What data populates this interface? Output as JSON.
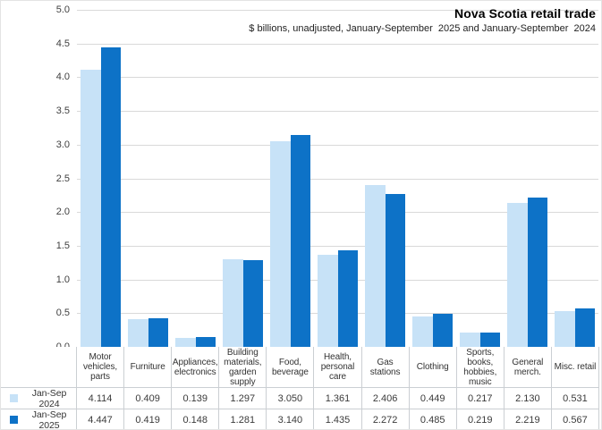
{
  "header": {
    "title": "Nova Scotia retail trade",
    "subtitle": "$ billions, unadjusted, January-September  2025 and January-September  2024"
  },
  "chart_data": {
    "type": "bar",
    "title": "Nova Scotia retail trade",
    "subtitle": "$ billions, unadjusted, January-September  2025 and January-September  2024",
    "categories": [
      "Motor vehicles, parts",
      "Furniture",
      "Appliances, electronics",
      "Building materials, garden supply",
      "Food, beverage",
      "Health, personal care",
      "Gas stations",
      "Clothing",
      "Sports, books, hobbies, music",
      "General merch.",
      "Misc. retail"
    ],
    "series": [
      {
        "name": "Jan-Sep 2024",
        "color": "#C7E2F7",
        "values": [
          "4.114",
          "0.409",
          "0.139",
          "1.297",
          "3.050",
          "1.361",
          "2.406",
          "0.449",
          "0.217",
          "2.130",
          "0.531"
        ]
      },
      {
        "name": "Jan-Sep 2025",
        "color": "#0D72C7",
        "values": [
          "4.447",
          "0.419",
          "0.148",
          "1.281",
          "3.140",
          "1.435",
          "2.272",
          "0.485",
          "0.219",
          "2.219",
          "0.567"
        ]
      }
    ],
    "xlabel": "",
    "ylabel": "",
    "ylim": [
      0,
      5
    ],
    "ytick_labels": [
      "5.0",
      "4.5",
      "4.0",
      "3.5",
      "3.0",
      "2.5",
      "2.0",
      "1.5",
      "1.0",
      "0.5",
      "0.0"
    ],
    "grid": true,
    "legend_position": "data-table-left"
  },
  "colors": {
    "series_2024": "#C7E2F7",
    "series_2025": "#0D72C7",
    "gridline": "#D9D9D9",
    "axis_line": "#AFB6BD",
    "table_border": "#CBCFD3",
    "label_text": "#404040"
  }
}
